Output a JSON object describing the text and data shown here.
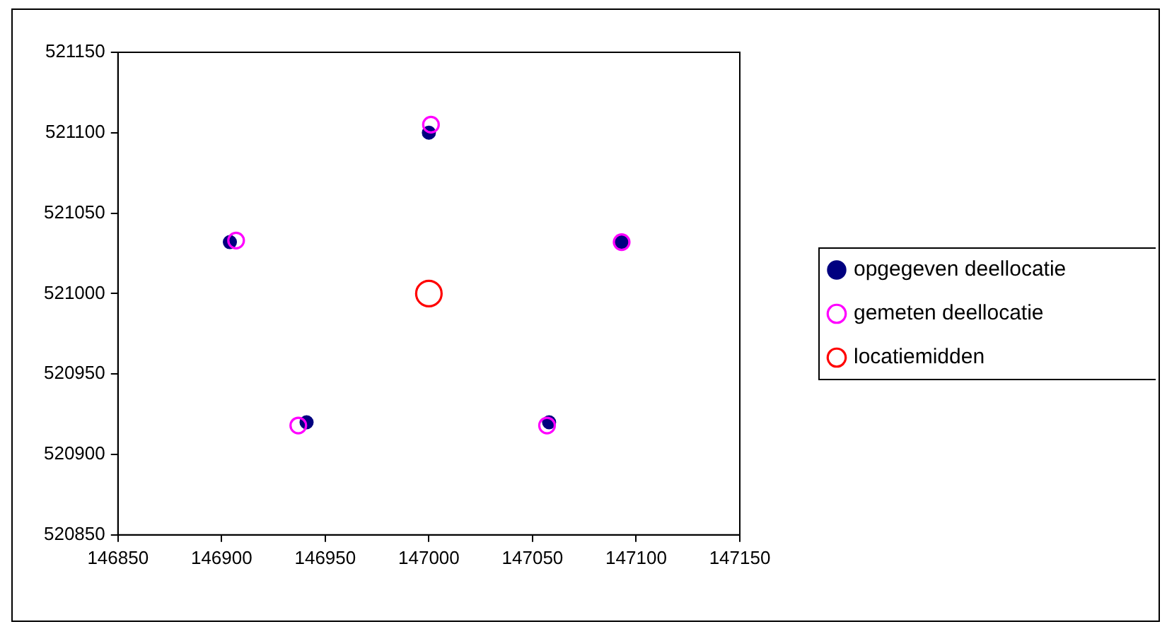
{
  "chart_data": {
    "type": "scatter",
    "xlim": [
      146850,
      147150
    ],
    "xticks": [
      146850,
      146900,
      146950,
      147000,
      147050,
      147100,
      147150
    ],
    "ylim": [
      520850,
      521150
    ],
    "yticks": [
      520850,
      520900,
      520950,
      521000,
      521050,
      521100,
      521150
    ],
    "grid": false,
    "legend": "right",
    "marker": "circle",
    "series": [
      {
        "name": "opgegeven deellocatie",
        "color": "#000080",
        "x": [
          147000,
          146904,
          147093,
          146941,
          147058
        ],
        "values": [
          521100,
          521032,
          521032,
          520920,
          520920
        ]
      },
      {
        "name": "gemeten deellocatie",
        "color": "#ff00ff",
        "x": [
          147001,
          146907,
          147093,
          146937,
          147057
        ],
        "values": [
          521105,
          521033,
          521032,
          520918,
          520918
        ]
      },
      {
        "name": "locatiemidden",
        "color": "#ff0000",
        "x": [
          147000
        ],
        "values": [
          521000
        ]
      }
    ]
  }
}
